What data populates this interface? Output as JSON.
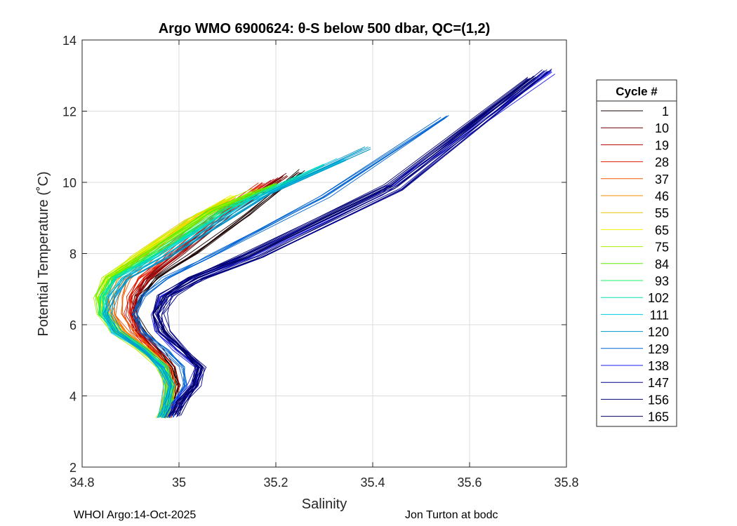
{
  "chart_data": {
    "type": "line",
    "title": "Argo WMO 6900624: θ-S below 500 dbar,  QC=(1,2)",
    "xlabel": "Salinity",
    "ylabel": "Potential Temperature (˚C)",
    "xlim": [
      34.8,
      35.8
    ],
    "ylim": [
      2,
      14
    ],
    "xticks": [
      34.8,
      35,
      35.2,
      35.4,
      35.6,
      35.8
    ],
    "xtick_labels": [
      "34.8",
      "35",
      "35.2",
      "35.4",
      "35.6",
      "35.8"
    ],
    "yticks": [
      2,
      4,
      6,
      8,
      10,
      12,
      14
    ],
    "ytick_labels": [
      "2",
      "4",
      "6",
      "8",
      "10",
      "12",
      "14"
    ],
    "grid": true,
    "legend": {
      "title": "Cycle #",
      "placement": "outside-right",
      "entries": [
        {
          "label": "1",
          "color": "#1a0000"
        },
        {
          "label": "10",
          "color": "#6b0000"
        },
        {
          "label": "19",
          "color": "#b30000"
        },
        {
          "label": "28",
          "color": "#e31a00"
        },
        {
          "label": "37",
          "color": "#f05a00"
        },
        {
          "label": "46",
          "color": "#f08c00"
        },
        {
          "label": "55",
          "color": "#e6c400"
        },
        {
          "label": "65",
          "color": "#f2f200"
        },
        {
          "label": "75",
          "color": "#a8f000"
        },
        {
          "label": "84",
          "color": "#5cf000"
        },
        {
          "label": "93",
          "color": "#18f060"
        },
        {
          "label": "102",
          "color": "#00e6b0"
        },
        {
          "label": "111",
          "color": "#00c8e6"
        },
        {
          "label": "120",
          "color": "#0096c8"
        },
        {
          "label": "129",
          "color": "#0064d2"
        },
        {
          "label": "138",
          "color": "#1e1ef0"
        },
        {
          "label": "147",
          "color": "#00008c"
        },
        {
          "label": "156",
          "color": "#000078"
        },
        {
          "label": "165",
          "color": "#000064"
        }
      ]
    },
    "series": [
      {
        "name": "Cycle 1",
        "color": "#1a0000",
        "s": [
          34.975,
          34.985,
          34.995,
          34.985,
          34.955,
          34.925,
          34.905,
          34.915,
          34.95,
          35.03,
          35.14,
          35.25
        ],
        "t": [
          3.4,
          3.8,
          4.3,
          4.8,
          5.3,
          5.8,
          6.3,
          6.8,
          7.3,
          8.0,
          9.1,
          10.3
        ]
      },
      {
        "name": "Cycle 10",
        "color": "#6b0000",
        "s": [
          34.97,
          34.98,
          34.99,
          34.98,
          34.95,
          34.92,
          34.905,
          34.91,
          34.935,
          35.0,
          35.11,
          35.22
        ],
        "t": [
          3.4,
          3.8,
          4.3,
          4.8,
          5.3,
          5.8,
          6.3,
          6.8,
          7.3,
          8.0,
          9.2,
          10.2
        ]
      },
      {
        "name": "Cycle 19",
        "color": "#b30000",
        "s": [
          34.975,
          34.985,
          34.99,
          34.98,
          34.95,
          34.915,
          34.9,
          34.905,
          34.93,
          34.995,
          35.1,
          35.2
        ],
        "t": [
          3.4,
          3.8,
          4.3,
          4.8,
          5.3,
          5.8,
          6.3,
          6.8,
          7.3,
          8.0,
          9.2,
          10.1
        ]
      },
      {
        "name": "Cycle 28",
        "color": "#e31a00",
        "s": [
          34.97,
          34.98,
          34.985,
          34.975,
          34.945,
          34.91,
          34.895,
          34.9,
          34.92,
          34.975,
          35.08,
          35.17
        ],
        "t": [
          3.4,
          3.8,
          4.3,
          4.8,
          5.3,
          5.8,
          6.3,
          6.8,
          7.3,
          7.9,
          9.1,
          9.95
        ]
      },
      {
        "name": "Cycle 37",
        "color": "#f05a00",
        "s": [
          34.97,
          34.98,
          34.985,
          34.975,
          34.94,
          34.9,
          34.875,
          34.875,
          34.89,
          34.94,
          35.04,
          35.12
        ],
        "t": [
          3.4,
          3.8,
          4.3,
          4.8,
          5.3,
          5.8,
          6.3,
          6.8,
          7.3,
          7.9,
          8.9,
          9.6
        ]
      },
      {
        "name": "Cycle 46",
        "color": "#f08c00",
        "s": [
          34.97,
          34.975,
          34.98,
          34.97,
          34.935,
          34.89,
          34.86,
          34.855,
          34.87,
          34.92,
          35.02,
          35.1
        ],
        "t": [
          3.4,
          3.8,
          4.3,
          4.8,
          5.3,
          5.8,
          6.3,
          6.8,
          7.3,
          7.9,
          8.9,
          9.5
        ]
      },
      {
        "name": "Cycle 55",
        "color": "#e6c400",
        "s": [
          34.97,
          34.975,
          34.98,
          34.97,
          34.93,
          34.88,
          34.85,
          34.845,
          34.86,
          34.91,
          35.02,
          35.11
        ],
        "t": [
          3.4,
          3.8,
          4.3,
          4.8,
          5.3,
          5.8,
          6.3,
          6.8,
          7.3,
          7.9,
          8.95,
          9.55
        ]
      },
      {
        "name": "Cycle 65",
        "color": "#f2f200",
        "s": [
          34.965,
          34.975,
          34.98,
          34.965,
          34.925,
          34.875,
          34.845,
          34.84,
          34.855,
          34.91,
          35.03,
          35.12
        ],
        "t": [
          3.4,
          3.8,
          4.3,
          4.8,
          5.3,
          5.8,
          6.3,
          6.8,
          7.3,
          7.9,
          9.0,
          9.6
        ]
      },
      {
        "name": "Cycle 75",
        "color": "#a8f000",
        "s": [
          34.965,
          34.975,
          34.98,
          34.965,
          34.925,
          34.87,
          34.84,
          34.835,
          34.85,
          34.915,
          35.05,
          35.16
        ],
        "t": [
          3.4,
          3.8,
          4.3,
          4.8,
          5.3,
          5.8,
          6.3,
          6.8,
          7.3,
          7.9,
          9.1,
          9.8
        ]
      },
      {
        "name": "Cycle 84",
        "color": "#5cf000",
        "s": [
          34.965,
          34.975,
          34.98,
          34.965,
          34.925,
          34.87,
          34.84,
          34.835,
          34.855,
          34.925,
          35.07,
          35.2
        ],
        "t": [
          3.4,
          3.8,
          4.3,
          4.8,
          5.3,
          5.8,
          6.3,
          6.8,
          7.3,
          7.9,
          9.2,
          9.95
        ]
      },
      {
        "name": "Cycle 93",
        "color": "#18f060",
        "s": [
          34.965,
          34.975,
          34.98,
          34.965,
          34.925,
          34.87,
          34.84,
          34.84,
          34.86,
          34.935,
          35.09,
          35.24
        ],
        "t": [
          3.4,
          3.8,
          4.3,
          4.8,
          5.3,
          5.8,
          6.3,
          6.8,
          7.3,
          7.9,
          9.25,
          10.1
        ]
      },
      {
        "name": "Cycle 102",
        "color": "#00e6b0",
        "s": [
          34.965,
          34.975,
          34.98,
          34.965,
          34.925,
          34.87,
          34.845,
          34.845,
          34.87,
          34.95,
          35.12,
          35.3
        ],
        "t": [
          3.4,
          3.8,
          4.3,
          4.8,
          5.3,
          5.8,
          6.3,
          6.8,
          7.3,
          7.9,
          9.35,
          10.45
        ]
      },
      {
        "name": "Cycle 111",
        "color": "#00c8e6",
        "s": [
          34.965,
          34.975,
          34.98,
          34.965,
          34.925,
          34.87,
          34.85,
          34.855,
          34.88,
          34.96,
          35.15,
          35.34
        ],
        "t": [
          3.4,
          3.8,
          4.3,
          4.8,
          5.3,
          5.8,
          6.3,
          6.8,
          7.3,
          7.9,
          9.5,
          10.65
        ]
      },
      {
        "name": "Cycle 120",
        "color": "#0096c8",
        "s": [
          34.965,
          34.975,
          34.985,
          34.97,
          34.93,
          34.875,
          34.855,
          34.865,
          34.895,
          34.98,
          35.19,
          35.39
        ],
        "t": [
          3.4,
          3.8,
          4.3,
          4.8,
          5.3,
          5.8,
          6.3,
          6.8,
          7.3,
          7.9,
          9.7,
          10.95
        ]
      },
      {
        "name": "Cycle 129",
        "color": "#0064d2",
        "s": [
          34.975,
          34.99,
          35.01,
          35.005,
          34.97,
          34.92,
          34.905,
          34.92,
          34.97,
          35.06,
          35.3,
          35.55
        ],
        "t": [
          3.4,
          3.8,
          4.3,
          4.8,
          5.3,
          5.8,
          6.3,
          6.8,
          7.3,
          7.9,
          9.6,
          11.85
        ]
      },
      {
        "name": "Cycle 138",
        "color": "#1e1ef0",
        "s": [
          34.985,
          35.0,
          35.03,
          35.04,
          35.0,
          34.96,
          34.95,
          34.97,
          35.03,
          35.14,
          35.42,
          35.77
        ],
        "t": [
          3.4,
          3.8,
          4.3,
          4.8,
          5.3,
          5.8,
          6.3,
          6.8,
          7.3,
          7.9,
          9.7,
          13.1
        ]
      },
      {
        "name": "Cycle 147",
        "color": "#00008c",
        "s": [
          34.99,
          35.005,
          35.035,
          35.045,
          35.01,
          34.975,
          34.965,
          34.985,
          35.05,
          35.17,
          35.46,
          35.76
        ],
        "t": [
          3.45,
          3.85,
          4.3,
          4.8,
          5.3,
          5.8,
          6.3,
          6.8,
          7.3,
          7.9,
          9.8,
          13.15
        ]
      },
      {
        "name": "Cycle 156",
        "color": "#000078",
        "s": [
          34.99,
          35.005,
          35.03,
          35.04,
          35.005,
          34.965,
          34.95,
          34.965,
          35.02,
          35.13,
          35.43,
          35.72
        ],
        "t": [
          3.45,
          3.85,
          4.3,
          4.8,
          5.3,
          5.8,
          6.3,
          6.8,
          7.3,
          7.9,
          9.9,
          12.9
        ]
      },
      {
        "name": "Cycle 165",
        "color": "#000064",
        "s": [
          34.995,
          35.01,
          35.035,
          35.045,
          35.01,
          34.97,
          34.955,
          34.975,
          35.035,
          35.15,
          35.45,
          35.74
        ],
        "t": [
          3.45,
          3.85,
          4.3,
          4.8,
          5.3,
          5.8,
          6.3,
          6.8,
          7.3,
          7.9,
          9.9,
          12.95
        ]
      }
    ]
  },
  "footer": {
    "left": "WHOI Argo:14-Oct-2025",
    "right": "Jon Turton at bodc"
  }
}
